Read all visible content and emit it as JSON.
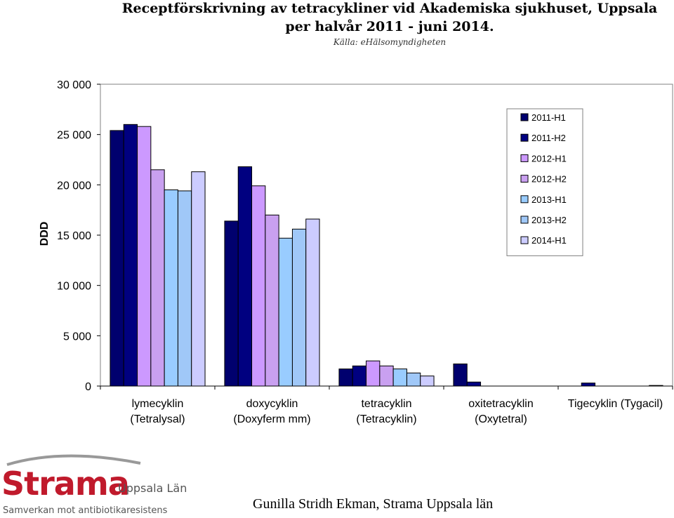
{
  "header": {
    "title_line1": "Receptförskrivning av tetracykliner vid Akademiska sjukhuset, Uppsala",
    "title_line2": "per halvår 2011 - juni 2014.",
    "source": "Källa: eHälsomyndigheten"
  },
  "chart_data": {
    "type": "bar",
    "title": "Receptförskrivning av tetracykliner vid Akademiska sjukhuset, Uppsala per halvår 2011 - juni 2014.",
    "ylabel": "DDD",
    "ylim": [
      0,
      30000
    ],
    "yticks": [
      0,
      5000,
      10000,
      15000,
      20000,
      25000,
      30000
    ],
    "ytick_labels": [
      "0",
      "5 000",
      "10 000",
      "15 000",
      "20 000",
      "25 000",
      "30 000"
    ],
    "categories": [
      [
        "lymecyklin",
        "(Tetralysal)"
      ],
      [
        "doxycyklin",
        "(Doxyferm mm)"
      ],
      [
        "tetracyklin",
        "(Tetracyklin)"
      ],
      [
        "oxitetracyklin",
        "(Oxytetral)"
      ],
      [
        "Tigecyklin (Tygacil)"
      ]
    ],
    "series": [
      {
        "name": "2011-H1",
        "color": "#00006e",
        "values": [
          25400,
          16400,
          1700,
          2200,
          0
        ]
      },
      {
        "name": "2011-H2",
        "color": "#000080",
        "values": [
          26000,
          21800,
          2000,
          400,
          300
        ]
      },
      {
        "name": "2012-H1",
        "color": "#cc99ff",
        "values": [
          25800,
          19900,
          2500,
          0,
          0
        ]
      },
      {
        "name": "2012-H2",
        "color": "#c9a0f0",
        "values": [
          21500,
          17000,
          2000,
          0,
          0
        ]
      },
      {
        "name": "2013-H1",
        "color": "#99ccff",
        "values": [
          19500,
          14700,
          1700,
          0,
          0
        ]
      },
      {
        "name": "2013-H2",
        "color": "#a0c8f8",
        "values": [
          19400,
          15600,
          1300,
          0,
          0
        ]
      },
      {
        "name": "2014-H1",
        "color": "#ccccff",
        "values": [
          21300,
          16600,
          1000,
          0,
          60
        ]
      }
    ],
    "grid": false,
    "legend": "top-right",
    "plot_background": "#ffffff"
  },
  "footer": {
    "author": "Gunilla Stridh Ekman, Strama Uppsala län"
  },
  "logo": {
    "word": "Strama",
    "region": "Uppsala Län",
    "tagline": "Samverkan mot antibiotikaresistens"
  }
}
